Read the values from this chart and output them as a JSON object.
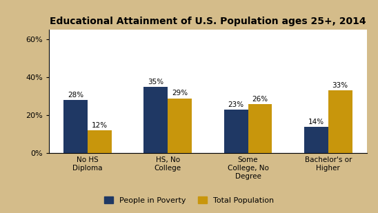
{
  "title": "Educational Attainment of U.S. Population ages 25+, 2014",
  "categories": [
    "No HS\nDiploma",
    "HS, No\nCollege",
    "Some\nCollege, No\nDegree",
    "Bachelor's or\nHigher"
  ],
  "series": {
    "People in Poverty": [
      28,
      35,
      23,
      14
    ],
    "Total Population": [
      12,
      29,
      26,
      33
    ]
  },
  "colors": {
    "People in Poverty": "#1F3864",
    "Total Population": "#C8960C"
  },
  "ylim": [
    0,
    65
  ],
  "yticks": [
    0,
    20,
    40,
    60
  ],
  "ytick_labels": [
    "0%",
    "20%",
    "40%",
    "60%"
  ],
  "bar_width": 0.3,
  "background_color": "#D4BC8A",
  "plot_bg_color": "#FFFFFF",
  "title_fontsize": 10,
  "label_fontsize": 7.5,
  "tick_fontsize": 8,
  "annotation_fontsize": 7.5
}
